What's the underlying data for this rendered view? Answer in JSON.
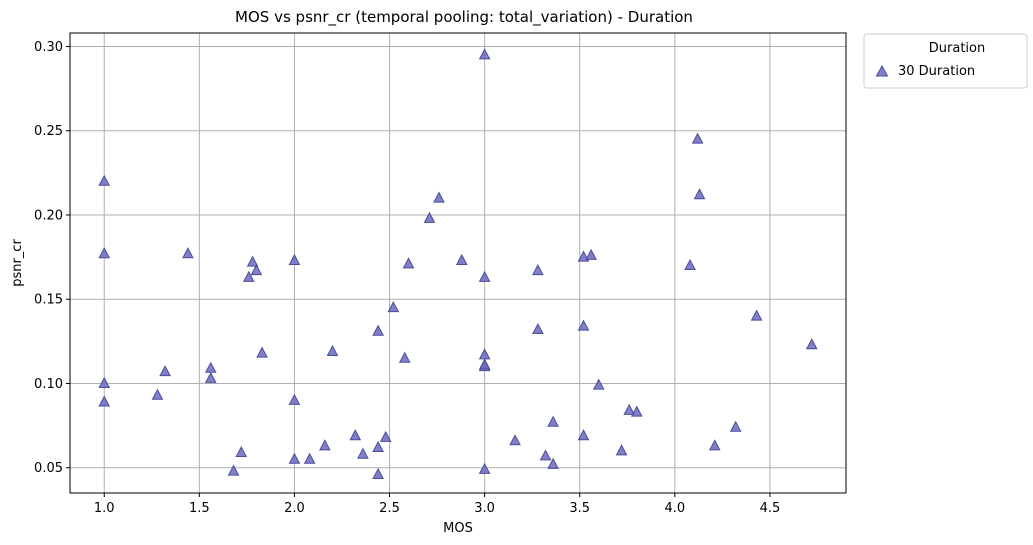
{
  "chart_data": {
    "type": "scatter",
    "title": "MOS vs psnr_cr (temporal pooling: total_variation) - Duration",
    "xlabel": "MOS",
    "ylabel": "psnr_cr",
    "xlim": [
      0.82,
      4.9
    ],
    "ylim": [
      0.035,
      0.308
    ],
    "x_ticks": [
      1.0,
      1.5,
      2.0,
      2.5,
      3.0,
      3.5,
      4.0,
      4.5
    ],
    "x_tick_labels": [
      "1.0",
      "1.5",
      "2.0",
      "2.5",
      "3.0",
      "3.5",
      "4.0",
      "4.5"
    ],
    "y_ticks": [
      0.05,
      0.1,
      0.15,
      0.2,
      0.25,
      0.3
    ],
    "y_tick_labels": [
      "0.05",
      "0.10",
      "0.15",
      "0.20",
      "0.25",
      "0.30"
    ],
    "grid": true,
    "legend": {
      "title": "Duration",
      "position": "outside-top-right"
    },
    "series": [
      {
        "name": "30 Duration",
        "marker": "triangle",
        "color": "#6a6ac0",
        "edge_color": "#4b4b9a",
        "x": [
          1.0,
          1.0,
          1.0,
          1.0,
          1.28,
          1.32,
          1.44,
          1.56,
          1.56,
          1.68,
          1.72,
          1.76,
          1.78,
          1.8,
          1.83,
          2.0,
          2.0,
          2.0,
          2.08,
          2.16,
          2.2,
          2.32,
          2.36,
          2.44,
          2.44,
          2.44,
          2.48,
          2.52,
          2.58,
          2.6,
          2.71,
          2.76,
          2.88,
          3.0,
          3.0,
          3.0,
          3.0,
          3.0,
          3.0,
          3.16,
          3.28,
          3.28,
          3.32,
          3.36,
          3.36,
          3.52,
          3.52,
          3.52,
          3.56,
          3.6,
          3.72,
          3.76,
          3.8,
          4.08,
          4.12,
          4.13,
          4.21,
          4.32,
          4.43,
          4.72
        ],
        "y": [
          0.22,
          0.177,
          0.1,
          0.089,
          0.093,
          0.107,
          0.177,
          0.109,
          0.103,
          0.048,
          0.059,
          0.163,
          0.172,
          0.167,
          0.118,
          0.173,
          0.09,
          0.055,
          0.055,
          0.063,
          0.119,
          0.069,
          0.058,
          0.131,
          0.062,
          0.046,
          0.068,
          0.145,
          0.115,
          0.171,
          0.198,
          0.21,
          0.173,
          0.295,
          0.163,
          0.117,
          0.11,
          0.111,
          0.049,
          0.066,
          0.167,
          0.132,
          0.057,
          0.077,
          0.052,
          0.175,
          0.134,
          0.069,
          0.176,
          0.099,
          0.06,
          0.084,
          0.083,
          0.17,
          0.245,
          0.212,
          0.063,
          0.074,
          0.14,
          0.123
        ]
      }
    ]
  }
}
